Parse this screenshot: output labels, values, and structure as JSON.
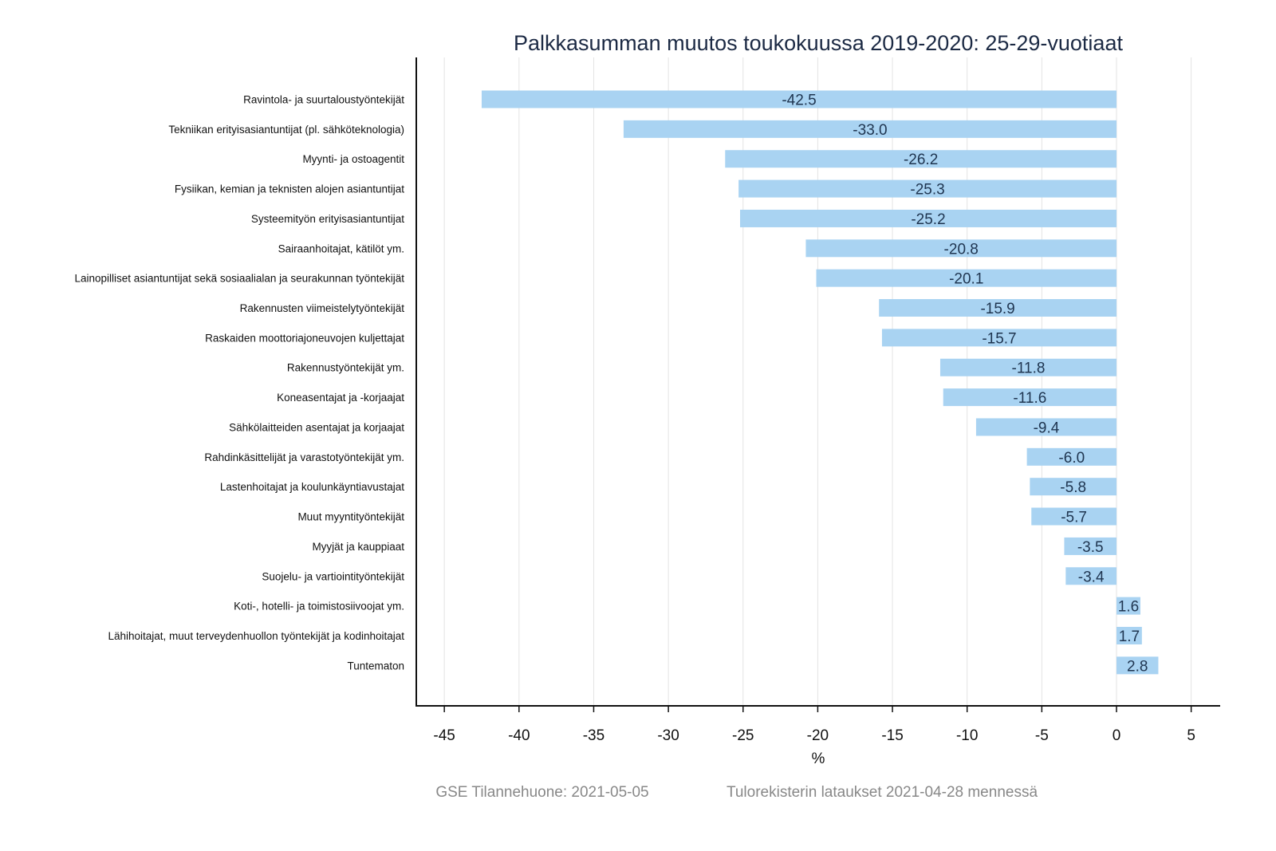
{
  "chart_data": {
    "type": "bar",
    "orientation": "horizontal",
    "title": "Palkkasumman muutos toukokuussa 2019-2020: 25-29-vuotiaat",
    "xlabel": "%",
    "ylabel": "",
    "xlim": [
      -47,
      7
    ],
    "xticks": [
      -45,
      -40,
      -35,
      -30,
      -25,
      -20,
      -15,
      -10,
      -5,
      0,
      5
    ],
    "grid": "vertical",
    "bar_color": "#a9d3f2",
    "categories": [
      "Ravintola- ja suurtaloustyöntekijät",
      "Tekniikan erityisasiantuntijat (pl. sähköteknologia)",
      "Myynti- ja ostoagentit",
      "Fysiikan, kemian ja teknisten alojen asiantuntijat",
      "Systeemityön erityisasiantuntijat",
      "Sairaanhoitajat, kätilöt ym.",
      "Lainopilliset asiantuntijat sekä sosiaalialan ja seurakunnan työntekijät",
      "Rakennusten viimeistelytyöntekijät",
      "Raskaiden moottoriajoneuvojen kuljettajat",
      "Rakennustyöntekijät ym.",
      "Koneasentajat ja -korjaajat",
      "Sähkölaitteiden asentajat ja korjaajat",
      "Rahdinkäsittelijät ja varastotyöntekijät ym.",
      "Lastenhoitajat ja koulunkäyntiavustajat",
      "Muut myyntityöntekijät",
      "Myyjät ja kauppiaat",
      "Suojelu- ja vartiointityöntekijät",
      "Koti-, hotelli- ja toimistosiivoojat ym.",
      "Lähihoitajat, muut terveydenhuollon työntekijät ja kodinhoitajat",
      "Tuntematon"
    ],
    "values": [
      -42.5,
      -33.0,
      -26.2,
      -25.3,
      -25.2,
      -20.8,
      -20.1,
      -15.9,
      -15.7,
      -11.8,
      -11.6,
      -9.4,
      -6.0,
      -5.8,
      -5.7,
      -3.5,
      -3.4,
      1.6,
      1.7,
      2.8
    ],
    "value_labels": [
      "-42.5",
      "-33.0",
      "-26.2",
      "-25.3",
      "-25.2",
      "-20.8",
      "-20.1",
      "-15.9",
      "-15.7",
      "-11.8",
      "-11.6",
      "-9.4",
      "-6.0",
      "-5.8",
      "-5.7",
      "-3.5",
      "-3.4",
      "1.6",
      "1.7",
      "2.8"
    ]
  },
  "footer": {
    "source": "GSE Tilannehuone: 2021-05-05",
    "note": "Tulorekisterin lataukset 2021-04-28 mennessä"
  }
}
